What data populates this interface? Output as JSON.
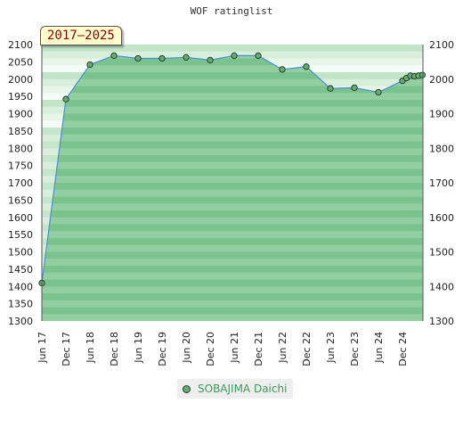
{
  "chart_data": {
    "type": "area",
    "title": "WOF ratinglist",
    "period": "2017–2025",
    "y_ticks": [
      1300,
      1350,
      1400,
      1450,
      1500,
      1550,
      1600,
      1650,
      1700,
      1750,
      1800,
      1850,
      1900,
      1950,
      2000,
      2050,
      2100
    ],
    "y_ticks_right": [
      1300,
      1400,
      1500,
      1600,
      1700,
      1800,
      1900,
      2000,
      2100
    ],
    "ylim": [
      1300,
      2100
    ],
    "x_ticks": [
      "Jun 17",
      "Dec 17",
      "Jun 18",
      "Dec 18",
      "Jun 19",
      "Dec 19",
      "Jun 20",
      "Dec 20",
      "Jun 21",
      "Dec 21",
      "Jun 22",
      "Dec 22",
      "Jun 23",
      "Dec 23",
      "Jun 24",
      "Dec 24"
    ],
    "series": [
      {
        "name": "SOBAJIMA Daichi",
        "color": "#5fb06f",
        "points": [
          {
            "x": "2017-06",
            "y": 1410
          },
          {
            "x": "2017-12",
            "y": 1942
          },
          {
            "x": "2018-06",
            "y": 2042
          },
          {
            "x": "2018-12",
            "y": 2068
          },
          {
            "x": "2019-06",
            "y": 2060
          },
          {
            "x": "2019-12",
            "y": 2060
          },
          {
            "x": "2020-06",
            "y": 2063
          },
          {
            "x": "2020-12",
            "y": 2055
          },
          {
            "x": "2021-06",
            "y": 2068
          },
          {
            "x": "2021-12",
            "y": 2068
          },
          {
            "x": "2022-06",
            "y": 2028
          },
          {
            "x": "2022-12",
            "y": 2036
          },
          {
            "x": "2023-06",
            "y": 1973
          },
          {
            "x": "2023-12",
            "y": 1975
          },
          {
            "x": "2024-06",
            "y": 1962
          },
          {
            "x": "2024-12",
            "y": 1995
          },
          {
            "x": "2025-01",
            "y": 2003
          },
          {
            "x": "2025-02",
            "y": 2010
          },
          {
            "x": "2025-03",
            "y": 2008
          },
          {
            "x": "2025-04",
            "y": 2010
          },
          {
            "x": "2025-05",
            "y": 2012
          }
        ]
      }
    ],
    "legend": "bottom-center",
    "grid": true
  }
}
